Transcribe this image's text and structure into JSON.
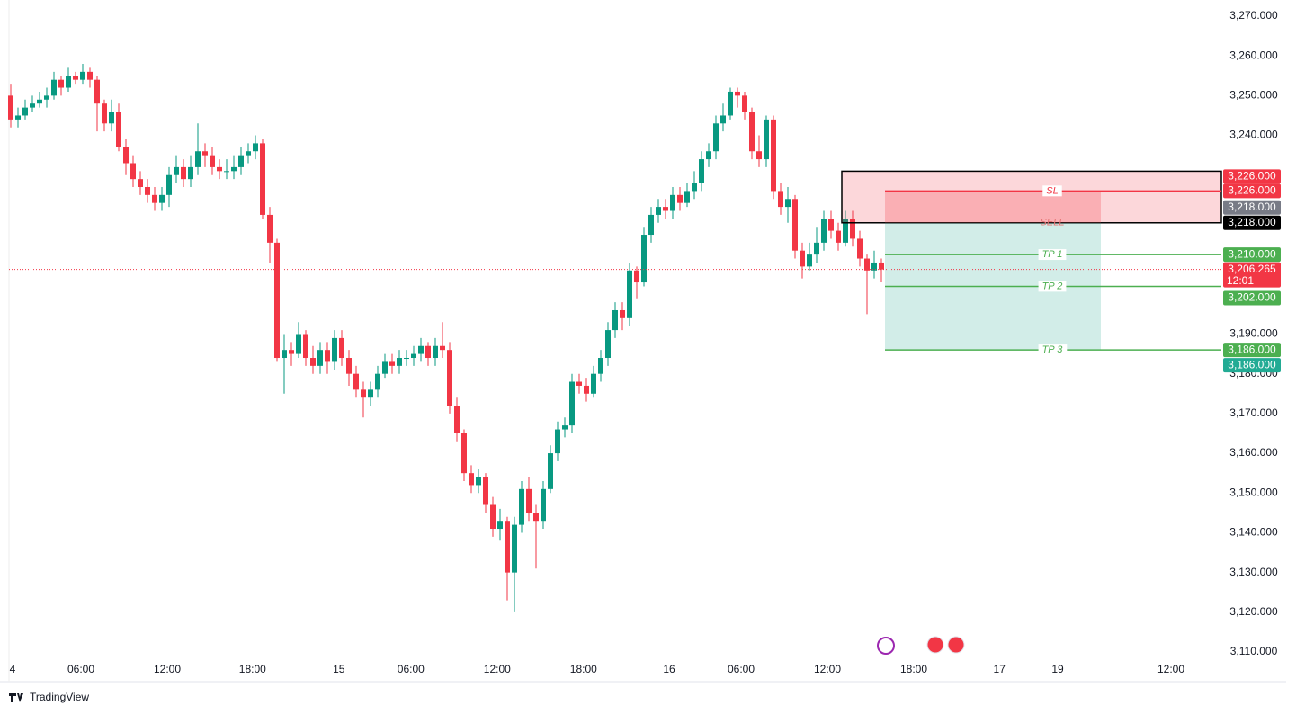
{
  "chart_data": {
    "type": "candlestick",
    "brand": "TradingView",
    "up_color": "#089981",
    "down_color": "#f23645",
    "xlim": [
      -0.25,
      168.25
    ],
    "xticks": [
      {
        "value": 0.25,
        "label": "4"
      },
      {
        "value": 9.75,
        "label": "06:00"
      },
      {
        "value": 21.75,
        "label": "12:00"
      },
      {
        "value": 33.6,
        "label": "18:00"
      },
      {
        "value": 45.6,
        "label": "15"
      },
      {
        "value": 55.6,
        "label": "06:00"
      },
      {
        "value": 67.6,
        "label": "12:00"
      },
      {
        "value": 79.6,
        "label": "18:00"
      },
      {
        "value": 91.5,
        "label": "16"
      },
      {
        "value": 101.5,
        "label": "06:00"
      },
      {
        "value": 113.5,
        "label": "12:00"
      },
      {
        "value": 125.5,
        "label": "18:00"
      },
      {
        "value": 137.4,
        "label": "17"
      },
      {
        "value": 145.5,
        "label": "19"
      },
      {
        "value": 161.25,
        "label": "12:00"
      }
    ],
    "ylim": [
      3107.74,
      3274.07
    ],
    "yticks": [
      {
        "value": 3270,
        "label": "3,270.000"
      },
      {
        "value": 3260,
        "label": "3,260.000"
      },
      {
        "value": 3250,
        "label": "3,250.000"
      },
      {
        "value": 3240,
        "label": "3,240.000"
      },
      {
        "value": 3190,
        "label": "3,190.000"
      },
      {
        "value": 3180,
        "label": "3,180.000"
      },
      {
        "value": 3170,
        "label": "3,170.000"
      },
      {
        "value": 3160,
        "label": "3,160.000"
      },
      {
        "value": 3150,
        "label": "3,150.000"
      },
      {
        "value": 3140,
        "label": "3,140.000"
      },
      {
        "value": 3130,
        "label": "3,130.000"
      },
      {
        "value": 3120,
        "label": "3,120.000"
      },
      {
        "value": 3110,
        "label": "3,110.000"
      }
    ],
    "open": [
      3250,
      3244,
      3245,
      3247,
      3248,
      3249,
      3250,
      3254,
      3252,
      3255,
      3254,
      3256,
      3254,
      3248,
      3243,
      3246,
      3237,
      3233,
      3229,
      3227,
      3225,
      3223,
      3225,
      3230,
      3232,
      3229,
      3232,
      3236,
      3235,
      3232,
      3231,
      3231,
      3232,
      3235,
      3236,
      3238,
      3220,
      3213,
      3184,
      3186,
      3185,
      3190,
      3184,
      3182,
      3186,
      3183,
      3189,
      3184,
      3180,
      3176,
      3174,
      3176,
      3180,
      3183,
      3182,
      3184,
      3184,
      3185,
      3187,
      3184,
      3187,
      3186,
      3172,
      3165,
      3155,
      3152,
      3154,
      3147,
      3141,
      3143,
      3130,
      3142,
      3151,
      3145,
      3143,
      3151,
      3160,
      3166,
      3167,
      3178,
      3177,
      3175,
      3180,
      3184,
      3191,
      3196,
      3194,
      3206,
      3203,
      3215,
      3220,
      3222,
      3221,
      3225,
      3223,
      3226,
      3228,
      3234,
      3236,
      3243,
      3245,
      3251,
      3250,
      3246,
      3236,
      3234,
      3244,
      3226,
      3222,
      3224,
      3211,
      3207,
      3210,
      3213,
      3219,
      3216,
      3213,
      3219,
      3214,
      3209,
      3206,
      3208
    ],
    "high": [
      3253,
      3247,
      3249,
      3250,
      3251,
      3252,
      3256,
      3255,
      3257,
      3256,
      3258,
      3257,
      3255,
      3249,
      3249,
      3248,
      3239,
      3235,
      3231,
      3229,
      3227,
      3227,
      3232,
      3235,
      3234,
      3235,
      3243,
      3238,
      3237,
      3234,
      3234,
      3235,
      3237,
      3238,
      3240,
      3239,
      3222,
      3214,
      3190,
      3188,
      3193,
      3191,
      3187,
      3188,
      3188,
      3191,
      3191,
      3186,
      3182,
      3178,
      3178,
      3182,
      3185,
      3185,
      3186,
      3186,
      3187,
      3189,
      3188,
      3189,
      3193,
      3188,
      3174,
      3166,
      3157,
      3156,
      3155,
      3149,
      3146,
      3144,
      3144,
      3153,
      3154,
      3147,
      3153,
      3162,
      3168,
      3169,
      3180,
      3180,
      3179,
      3182,
      3186,
      3193,
      3198,
      3198,
      3208,
      3207,
      3217,
      3222,
      3224,
      3224,
      3227,
      3227,
      3228,
      3231,
      3236,
      3238,
      3245,
      3248,
      3252,
      3252,
      3251,
      3247,
      3240,
      3245,
      3245,
      3228,
      3227,
      3225,
      3213,
      3213,
      3217,
      3221,
      3221,
      3218,
      3221,
      3221,
      3216,
      3210,
      3211,
      3209
    ],
    "low": [
      3242,
      3242,
      3244,
      3246,
      3247,
      3247,
      3249,
      3250,
      3251,
      3253,
      3253,
      3252,
      3241,
      3241,
      3241,
      3236,
      3230,
      3227,
      3225,
      3223,
      3221,
      3221,
      3222,
      3228,
      3227,
      3227,
      3230,
      3232,
      3230,
      3229,
      3229,
      3229,
      3230,
      3233,
      3234,
      3219,
      3208,
      3183,
      3175,
      3182,
      3184,
      3182,
      3180,
      3180,
      3180,
      3181,
      3182,
      3177,
      3174,
      3169,
      3172,
      3174,
      3179,
      3180,
      3180,
      3182,
      3182,
      3183,
      3182,
      3182,
      3184,
      3170,
      3163,
      3153,
      3150,
      3150,
      3145,
      3139,
      3138,
      3123,
      3120,
      3140,
      3143,
      3131,
      3141,
      3150,
      3158,
      3164,
      3165,
      3175,
      3173,
      3174,
      3178,
      3182,
      3189,
      3191,
      3192,
      3199,
      3202,
      3213,
      3218,
      3219,
      3219,
      3221,
      3222,
      3224,
      3226,
      3232,
      3234,
      3241,
      3244,
      3247,
      3244,
      3234,
      3232,
      3232,
      3224,
      3220,
      3218,
      3209,
      3204,
      3206,
      3208,
      3211,
      3214,
      3211,
      3212,
      3212,
      3207,
      3195,
      3204,
      3203
    ],
    "close": [
      3244,
      3245,
      3247,
      3248,
      3249,
      3250,
      3254,
      3252,
      3255,
      3254,
      3256,
      3254,
      3248,
      3243,
      3246,
      3237,
      3233,
      3229,
      3227,
      3225,
      3223,
      3225,
      3230,
      3232,
      3229,
      3232,
      3236,
      3235,
      3232,
      3231,
      3231,
      3232,
      3235,
      3236,
      3238,
      3220,
      3213,
      3184,
      3186,
      3185,
      3190,
      3184,
      3182,
      3186,
      3183,
      3189,
      3184,
      3180,
      3176,
      3174,
      3176,
      3180,
      3183,
      3182,
      3184,
      3184,
      3185,
      3187,
      3184,
      3187,
      3186,
      3172,
      3165,
      3155,
      3152,
      3154,
      3147,
      3141,
      3143,
      3130,
      3142,
      3151,
      3145,
      3143,
      3151,
      3160,
      3166,
      3167,
      3178,
      3177,
      3175,
      3180,
      3184,
      3191,
      3196,
      3194,
      3206,
      3203,
      3215,
      3220,
      3222,
      3221,
      3225,
      3223,
      3226,
      3228,
      3234,
      3236,
      3243,
      3245,
      3251,
      3250,
      3246,
      3236,
      3234,
      3244,
      3226,
      3222,
      3224,
      3211,
      3207,
      3210,
      3213,
      3219,
      3216,
      3213,
      3219,
      3214,
      3209,
      3206,
      3208,
      3206.265
    ],
    "levels": [
      {
        "label": "SL",
        "value": 3226,
        "color": "#f23645"
      },
      {
        "label": "SELL",
        "value": 3218,
        "color": "#e57373"
      },
      {
        "label": "TP 1",
        "value": 3210,
        "color": "#4caf50"
      },
      {
        "label": "TP 2",
        "value": 3202,
        "color": "#4caf50"
      },
      {
        "label": "TP 3",
        "value": 3186,
        "color": "#4caf50"
      }
    ],
    "price_tags": [
      {
        "value": 3226,
        "label": "3,226.000",
        "color": "#f23645"
      },
      {
        "value": 3226,
        "label": "3,226.000",
        "color": "#f23645"
      },
      {
        "value": 3218,
        "label": "3,218.000",
        "color": "#787b86"
      },
      {
        "value": 3218,
        "label": "3,218.000",
        "color": "#000000"
      },
      {
        "value": 3210,
        "label": "3,210.000",
        "color": "#4caf50"
      },
      {
        "value": 3202,
        "label": "3,202.000",
        "color": "#4caf50"
      },
      {
        "value": 3186,
        "label": "3,186.000",
        "color": "#4caf50"
      },
      {
        "value": 3186,
        "label": "3,186.000",
        "color": "#22ab94"
      }
    ],
    "current": {
      "value": 3206.265,
      "label": "3,206.265",
      "countdown": "12:01",
      "color": "#f23645"
    }
  }
}
